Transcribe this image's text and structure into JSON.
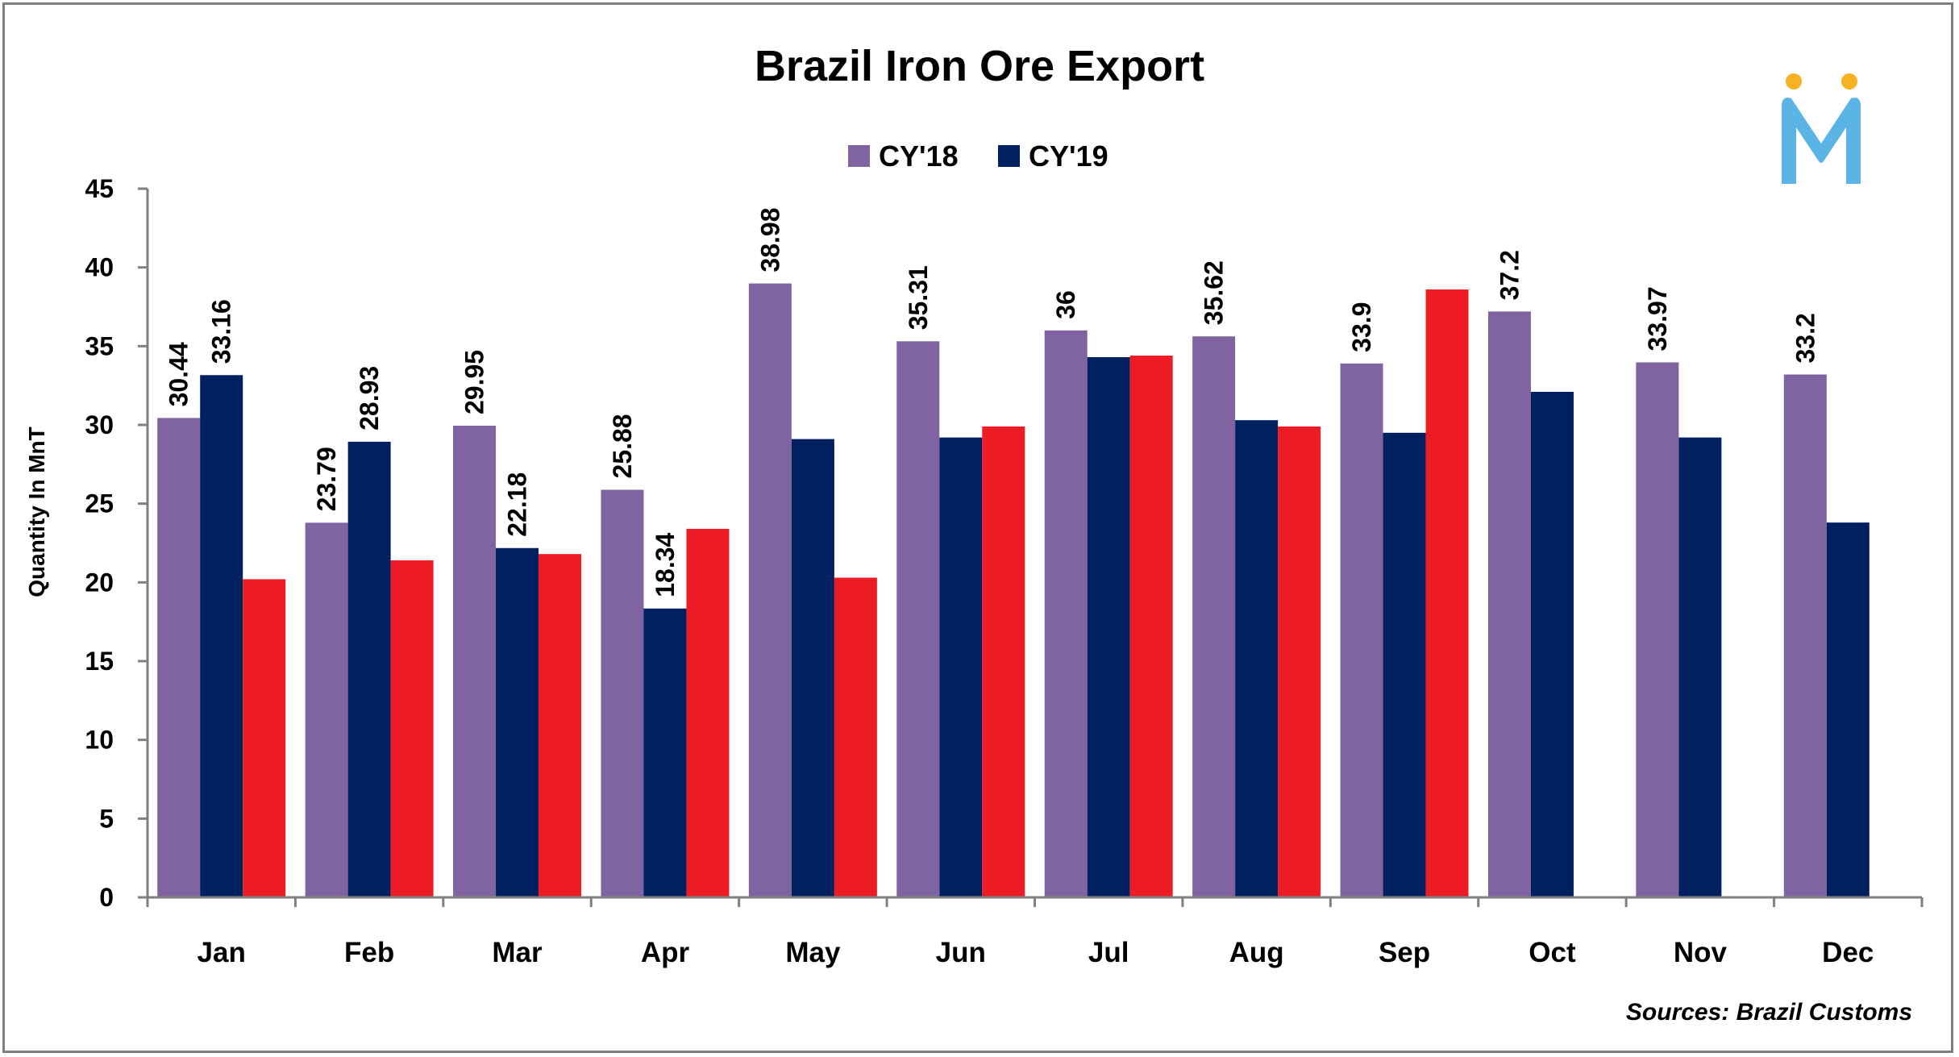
{
  "chart_data": {
    "type": "bar",
    "title": "Brazil Iron Ore Export",
    "xlabel": "",
    "ylabel": "Quantity In MnT",
    "ylim": [
      0,
      45
    ],
    "yticks": [
      0,
      5,
      10,
      15,
      20,
      25,
      30,
      35,
      40,
      45
    ],
    "grid": false,
    "legend_position": "top-center",
    "categories": [
      "Jan",
      "Feb",
      "Mar",
      "Apr",
      "May",
      "Jun",
      "Jul",
      "Aug",
      "Sep",
      "Oct",
      "Nov",
      "Dec"
    ],
    "series": [
      {
        "name": "CY'18",
        "color": "#8064a2",
        "values": [
          30.44,
          23.79,
          29.95,
          25.88,
          38.98,
          35.31,
          36,
          35.62,
          33.9,
          37.2,
          33.97,
          33.2
        ],
        "labels": [
          "30.44",
          "23.79",
          "29.95",
          "25.88",
          "38.98",
          "35.31",
          "36",
          "35.62",
          "33.9",
          "37.2",
          "33.97",
          "33.2"
        ]
      },
      {
        "name": "CY'19",
        "color": "#002060",
        "values": [
          33.16,
          28.93,
          22.18,
          18.34,
          29.1,
          29.2,
          34.3,
          30.3,
          29.5,
          32.1,
          29.2,
          23.8
        ],
        "labels": [
          "33.16",
          "28.93",
          "22.18",
          "18.34",
          "",
          "",
          "",
          "",
          "",
          "",
          "",
          ""
        ]
      },
      {
        "color": "#ed1c24",
        "values": [
          20.2,
          21.4,
          21.8,
          23.4,
          20.3,
          29.9,
          34.4,
          29.9,
          38.6,
          null,
          null,
          null
        ],
        "labels": [
          "",
          "",
          "",
          "",
          "",
          "",
          "",
          "",
          "",
          "",
          "",
          ""
        ]
      }
    ],
    "source": "Sources: Brazil Customs"
  },
  "logo": {
    "letter": "M",
    "color": "#5ab4e5",
    "dot_color": "#f6b222"
  }
}
